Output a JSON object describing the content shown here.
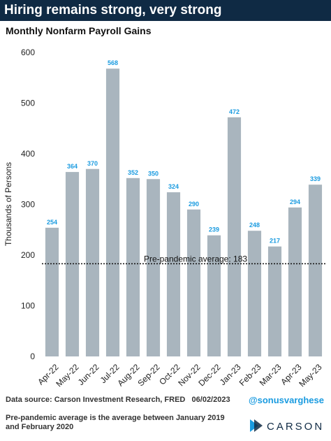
{
  "chart_data": {
    "type": "bar",
    "title": "Hiring remains strong, very strong",
    "subtitle": "Monthly Nonfarm Payroll Gains",
    "y_label": "Thousands of Persons",
    "categories": [
      "Apr-22",
      "May-22",
      "Jun-22",
      "Jul-22",
      "Aug-22",
      "Sep-22",
      "Oct-22",
      "Nov-22",
      "Dec-22",
      "Jan-23",
      "Feb-23",
      "Mar-23",
      "Apr-23",
      "May-23"
    ],
    "values": [
      254,
      364,
      370,
      568,
      352,
      350,
      324,
      290,
      239,
      472,
      248,
      217,
      294,
      339
    ],
    "color": "#a9b5be",
    "label_color": "#1a9be0",
    "ylim": [
      0,
      600
    ],
    "yticks": [
      0,
      100,
      200,
      300,
      400,
      500,
      600
    ],
    "reference_line": {
      "value": 183,
      "label": "Pre-pandemic average: 183"
    },
    "source": "Data source: Carson Investment Research, FRED   06/02/2023",
    "handle": "@sonusvarghese",
    "note": "Pre-pandemic average is the average between January 2019 and February 2020",
    "brand": "CARSON"
  }
}
